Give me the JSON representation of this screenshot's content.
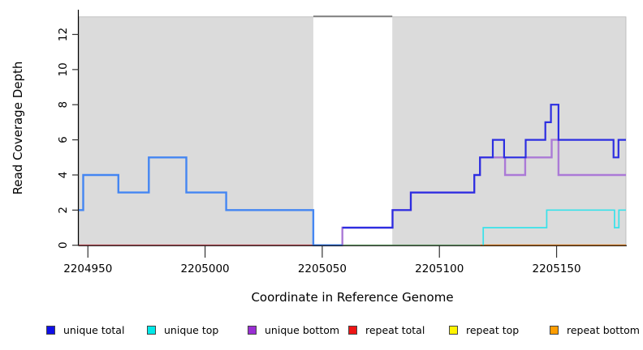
{
  "chart_data": {
    "type": "line",
    "subtype": "step-coverage-plot",
    "title": "",
    "xlabel": "Coordinate in Reference Genome",
    "ylabel": "Read Coverage Depth",
    "xlim": [
      2204946.1,
      2205179.6
    ],
    "ylim": [
      0,
      13.36
    ],
    "xticks": [
      2204950,
      2205000,
      2205050,
      2205100,
      2205150
    ],
    "yticks": [
      0,
      2,
      4,
      6,
      8,
      10,
      12
    ],
    "grid": false,
    "legend_position": "bottom",
    "plot_background": "#dbdbdb",
    "plot_border_color": "#b6b6b6",
    "gap_region": {
      "start": 2205046.2,
      "end": 2205079.9,
      "top_value": 13,
      "fill": "#ffffff",
      "top_border": "#7e7e7e"
    },
    "series": [
      {
        "name": "repeat total",
        "legend_color": "#ee1515",
        "segments": [
          {
            "color": "#e34a55",
            "width": 1.6,
            "steps": [
              [
                2204946.1,
                0
              ]
            ],
            "x_end": 2205046.2
          }
        ]
      },
      {
        "name": "repeat top",
        "legend_color": "#fff400",
        "note": "drawn where it overlaps unique top at depth 0; renders green",
        "segments": [
          {
            "color": "#79c87b",
            "width": 1.6,
            "steps": [
              [
                2205058.6,
                0
              ]
            ],
            "x_end": 2205117.5
          }
        ]
      },
      {
        "name": "repeat bottom",
        "legend_color": "#ff9d00",
        "segments": [
          {
            "color": "#ff8e1f",
            "width": 2,
            "steps": [
              [
                2205117.5,
                0
              ]
            ],
            "x_end": 2205179.6
          }
        ]
      },
      {
        "name": "unique bottom",
        "legend_color": "#9a2fd4",
        "segments": [
          {
            "color": "#ab7ad6",
            "width": 2.4,
            "steps": [
              [
                2205046.2,
                0
              ],
              [
                2205058.6,
                1
              ],
              [
                2205080,
                2
              ],
              [
                2205087.8,
                3
              ],
              [
                2205114.9,
                4
              ],
              [
                2205117.3,
                5
              ],
              [
                2205128,
                4
              ],
              [
                2205136.6,
                5
              ],
              [
                2205147.9,
                6
              ],
              [
                2205150.8,
                4
              ]
            ],
            "x_end": 2205179.6
          }
        ]
      },
      {
        "name": "unique total",
        "legend_color": "#0f0fe8",
        "segments": [
          {
            "color": "#4486f2",
            "width": 2.4,
            "steps": [
              [
                2204946.1,
                2
              ],
              [
                2204948,
                4
              ],
              [
                2204963,
                3
              ],
              [
                2204976,
                5
              ],
              [
                2204992,
                3
              ],
              [
                2205009,
                2
              ],
              [
                2205046.2,
                0
              ]
            ],
            "x_end": 2205058.6
          },
          {
            "color": "#2c2ee1",
            "width": 2.2,
            "steps": [
              [
                2205058.6,
                1
              ],
              [
                2205080,
                2
              ],
              [
                2205087.8,
                3
              ],
              [
                2205114.9,
                4
              ],
              [
                2205117.3,
                5
              ],
              [
                2205122.8,
                6
              ],
              [
                2205127.6,
                5
              ],
              [
                2205136.8,
                6
              ],
              [
                2205145.2,
                7
              ],
              [
                2205147.6,
                8
              ],
              [
                2205150.8,
                6
              ],
              [
                2205174.3,
                5
              ],
              [
                2205176.4,
                6
              ]
            ],
            "x_end": 2205179.6
          }
        ]
      },
      {
        "name": "unique top",
        "legend_color": "#00e8e8",
        "segments": [
          {
            "color": "#38e2ea",
            "width": 1.7,
            "steps": [
              [
                2205118.7,
                0
              ],
              [
                2205118.7,
                1
              ],
              [
                2205145.8,
                2
              ],
              [
                2205174.7,
                1
              ],
              [
                2205176.6,
                2
              ]
            ],
            "x_end": 2205179.6
          }
        ]
      }
    ]
  },
  "legend": {
    "items": [
      {
        "label": "unique total",
        "color": "#0f0fe8"
      },
      {
        "label": "unique top",
        "color": "#00e8e8"
      },
      {
        "label": "unique bottom",
        "color": "#9a2fd4"
      },
      {
        "label": "repeat total",
        "color": "#ee1515"
      },
      {
        "label": "repeat top",
        "color": "#fff400"
      },
      {
        "label": "repeat bottom",
        "color": "#ff9d00"
      }
    ]
  }
}
